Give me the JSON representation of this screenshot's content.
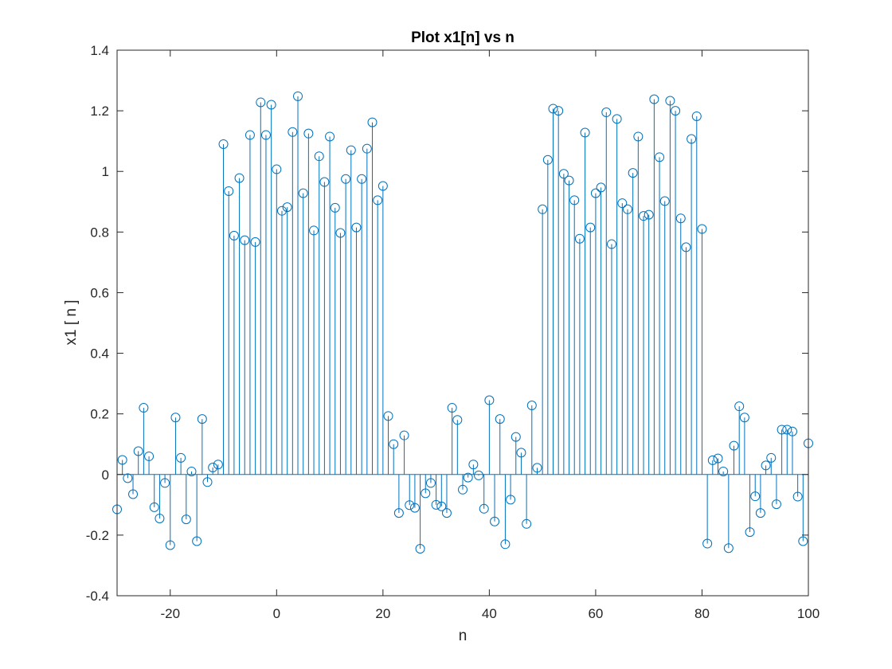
{
  "colors": {
    "series": "#0072BD",
    "axis": "#262626",
    "background": "#ffffff"
  },
  "chart_data": {
    "type": "stem",
    "title": "Plot x1[n] vs n",
    "xlabel": "n",
    "ylabel": "x1 [ n ]",
    "xlim": [
      -30,
      100
    ],
    "ylim": [
      -0.4,
      1.4
    ],
    "xticks": [
      -20,
      0,
      20,
      40,
      60,
      80,
      100
    ],
    "xtick_labels": [
      "-20",
      "0",
      "20",
      "40",
      "60",
      "80",
      "100"
    ],
    "yticks": [
      -0.4,
      -0.2,
      0,
      0.2,
      0.4,
      0.6,
      0.8,
      1,
      1.2,
      1.4
    ],
    "ytick_labels": [
      "-0.4",
      "-0.2",
      "0",
      "0.2",
      "0.4",
      "0.6",
      "0.8",
      "1",
      "1.2",
      "1.4"
    ],
    "grid": false,
    "legend": "none",
    "marker": "circle",
    "x_start": -30,
    "values": [
      -0.115,
      0.048,
      -0.012,
      -0.065,
      0.077,
      0.22,
      0.06,
      -0.108,
      -0.145,
      -0.028,
      -0.233,
      0.188,
      0.055,
      -0.148,
      0.01,
      -0.22,
      0.183,
      -0.025,
      0.023,
      0.033,
      1.09,
      0.935,
      0.788,
      0.978,
      0.773,
      1.12,
      0.767,
      1.228,
      1.12,
      1.22,
      1.007,
      0.87,
      0.882,
      1.13,
      1.248,
      0.928,
      1.125,
      0.805,
      1.05,
      0.965,
      1.115,
      0.88,
      0.797,
      0.975,
      1.07,
      0.815,
      0.975,
      1.075,
      1.162,
      0.905,
      0.952,
      0.193,
      0.1,
      -0.127,
      0.129,
      -0.101,
      -0.11,
      -0.245,
      -0.062,
      -0.028,
      -0.1,
      -0.105,
      -0.127,
      0.22,
      0.18,
      -0.05,
      -0.01,
      0.033,
      -0.003,
      -0.113,
      0.245,
      -0.155,
      0.183,
      -0.23,
      -0.083,
      0.124,
      0.072,
      -0.163,
      0.228,
      0.022,
      0.875,
      1.038,
      1.207,
      1.2,
      0.992,
      0.97,
      0.905,
      0.778,
      1.128,
      0.815,
      0.928,
      0.947,
      1.195,
      0.76,
      1.173,
      0.895,
      0.875,
      0.995,
      1.115,
      0.853,
      0.857,
      1.238,
      1.047,
      0.902,
      1.233,
      1.2,
      0.845,
      0.75,
      1.107,
      1.182,
      0.81,
      -0.228,
      0.047,
      0.053,
      0.01,
      -0.243,
      0.095,
      0.225,
      0.188,
      -0.19,
      -0.072,
      -0.127,
      0.03,
      0.055,
      -0.098,
      0.148,
      0.148,
      0.142,
      -0.073,
      -0.22,
      0.103
    ]
  }
}
